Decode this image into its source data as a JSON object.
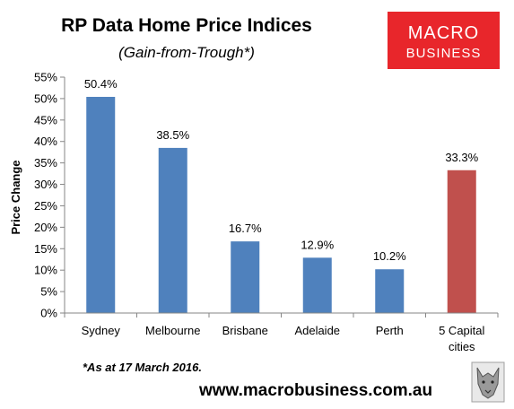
{
  "chart_data": {
    "type": "bar",
    "title": "RP Data Home Price Indices",
    "subtitle": "(Gain-from-Trough*)",
    "ylabel": "Price Change",
    "xlabel": "",
    "ylim": [
      0,
      55
    ],
    "y_ticks": [
      0,
      5,
      10,
      15,
      20,
      25,
      30,
      35,
      40,
      45,
      50,
      55
    ],
    "y_tick_labels": [
      "0%",
      "5%",
      "10%",
      "15%",
      "20%",
      "25%",
      "30%",
      "35%",
      "40%",
      "45%",
      "50%",
      "55%"
    ],
    "categories": [
      "Sydney",
      "Melbourne",
      "Brisbane",
      "Adelaide",
      "Perth",
      "5 Capital cities"
    ],
    "category_lines": [
      [
        "Sydney"
      ],
      [
        "Melbourne"
      ],
      [
        "Brisbane"
      ],
      [
        "Adelaide"
      ],
      [
        "Perth"
      ],
      [
        "5 Capital",
        "cities"
      ]
    ],
    "values": [
      50.4,
      38.5,
      16.7,
      12.9,
      10.2,
      33.3
    ],
    "data_labels": [
      "50.4%",
      "38.5%",
      "16.7%",
      "12.9%",
      "10.2%",
      "33.3%"
    ],
    "bar_colors": [
      "#4f81bd",
      "#4f81bd",
      "#4f81bd",
      "#4f81bd",
      "#4f81bd",
      "#c0504d"
    ],
    "grid": false,
    "legend": "none",
    "footnote": "*As at 17 March 2016."
  },
  "branding": {
    "logo_line1": "MACRO",
    "logo_line2": "BUSINESS",
    "logo_bg": "#e8262b",
    "logo_fg": "#ffffff",
    "url": "www.macrobusiness.com.au",
    "mascot_icon": "wolf-icon"
  }
}
